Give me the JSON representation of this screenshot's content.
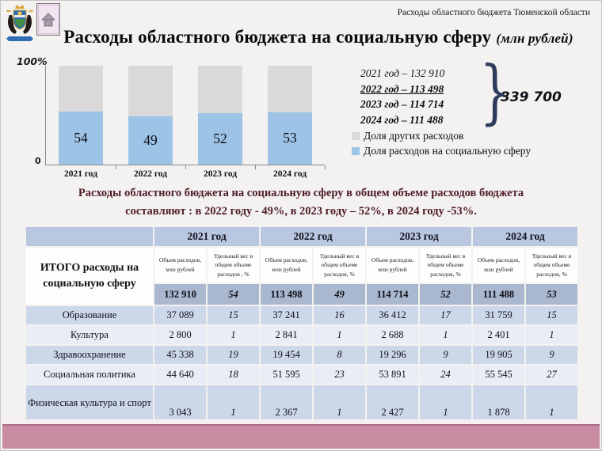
{
  "header": {
    "caption": "Расходы областного бюджета Тюменской области",
    "title": "Расходы областного бюджета на социальную сферу",
    "unit": "(млн рублей)"
  },
  "chart_data": {
    "type": "bar",
    "stacked": true,
    "categories": [
      "2021 год",
      "2022 год",
      "2023 год",
      "2024 год"
    ],
    "series": [
      {
        "name": "Доля расходов на социальную сферу",
        "values": [
          54,
          49,
          52,
          53
        ],
        "color": "#9dc3e6"
      },
      {
        "name": "Доля других расходов",
        "values": [
          46,
          51,
          48,
          47
        ],
        "color": "#d9d9d9"
      }
    ],
    "ylim": [
      0,
      100
    ],
    "y_top_label": "100%",
    "y_bottom_label": "0",
    "legend_position": "right-below",
    "grid": false
  },
  "annotations": {
    "year_lines": [
      {
        "text": "2021 год – 132 910",
        "bold": false,
        "underline": false
      },
      {
        "text": "2022 год – 113 498",
        "bold": true,
        "underline": true
      },
      {
        "text": "2023 год – 114 714",
        "bold": true,
        "underline": false
      },
      {
        "text": "2024 год – 111 488",
        "bold": true,
        "underline": false
      }
    ],
    "brace": "}",
    "total": "339 700"
  },
  "legend": [
    {
      "label": "Доля других расходов",
      "color": "#d9d9d9"
    },
    {
      "label": "Доля расходов на социальную сферу",
      "color": "#9dc3e6"
    }
  ],
  "summary": {
    "line1": "Расходы областного бюджета на социальную сферу в общем объеме расходов бюджета",
    "line2": "составляют : в 2022 году -  49%, в 2023 году – 52%, в 2024 году -53%."
  },
  "table": {
    "row_header": "ИТОГО расходы на социальную сферу",
    "years": [
      "2021 год",
      "2022 год",
      "2023 год",
      "2024 год"
    ],
    "subheaders": [
      [
        "Объем расходов, млн рублей",
        "Удельный вес в общем объеме расходов , %"
      ],
      [
        "Объем расходов, млн рублей",
        "Удельный вес в общем объеме расходов, %"
      ],
      [
        "Объем расходов, млн рублей",
        "Удельный вес в общем объеме расходов, %"
      ],
      [
        "Объем расходов, млн рублей",
        "Удельный вес в общем объеме расходов, %"
      ]
    ],
    "total_row": [
      "132 910",
      "54",
      "113 498",
      "49",
      "114 714",
      "52",
      "111 488",
      "53"
    ],
    "rows": [
      {
        "label": "Образование",
        "values": [
          "37 089",
          "15",
          "37 241",
          "16",
          "36 412",
          "17",
          "31 759",
          "15"
        ]
      },
      {
        "label": "Культура",
        "values": [
          "2 800",
          "1",
          "2 841",
          "1",
          "2 688",
          "1",
          "2 401",
          "1"
        ]
      },
      {
        "label": "Здравоохранение",
        "values": [
          "45 338",
          "19",
          "19 454",
          "8",
          "19 296",
          "9",
          "19 905",
          "9"
        ]
      },
      {
        "label": "Социальная политика",
        "values": [
          "44 640",
          "18",
          "51 595",
          "23",
          "53 891",
          "24",
          "55 545",
          "27"
        ]
      },
      {
        "label": "Физическая культура и спорт",
        "values": [
          "3 043",
          "1",
          "2 367",
          "1",
          "2 427",
          "1",
          "1 878",
          "1"
        ]
      }
    ]
  },
  "colors": {
    "accent_blue_bar": "#9dc3e6",
    "accent_grey_bar": "#d9d9d9",
    "table_header": "#b9c7e0",
    "table_total_row": "#a9b7cf",
    "table_band_dark": "#ccd8ea",
    "table_band_light": "#e9eef6",
    "summary_text": "#4f1b29",
    "footer_bar": "#c78ba2"
  }
}
